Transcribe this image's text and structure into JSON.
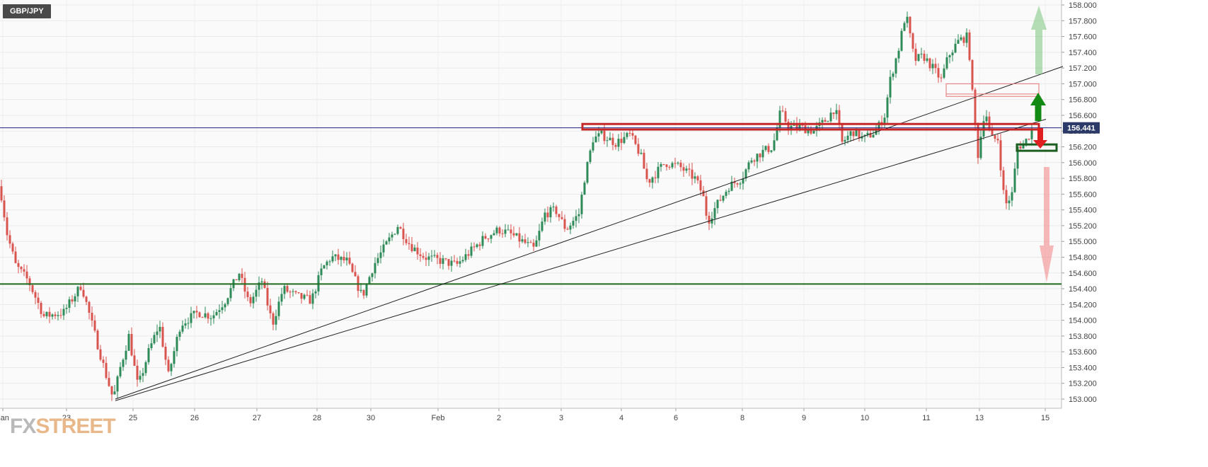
{
  "symbol": "GBP/JPY",
  "logo": {
    "prefix": "FX",
    "suffix": "STREET"
  },
  "chart_data": {
    "type": "candlestick",
    "title": "",
    "ylim": [
      152.95,
      158.05
    ],
    "price_ticks": [
      "158.000",
      "157.800",
      "157.600",
      "157.400",
      "157.200",
      "157.000",
      "156.800",
      "156.600",
      "156.400",
      "156.200",
      "156.000",
      "155.800",
      "155.600",
      "155.400",
      "155.200",
      "155.000",
      "154.800",
      "154.600",
      "154.400",
      "154.200",
      "154.000",
      "153.800",
      "153.600",
      "153.400",
      "153.200",
      "153.000"
    ],
    "date_labels": [
      "Jan",
      "23",
      "25",
      "26",
      "27",
      "28",
      "30",
      "Feb",
      "2",
      "3",
      "4",
      "6",
      "8",
      "9",
      "10",
      "11",
      "13",
      "15"
    ],
    "current_price": "156.441",
    "current_price_value": 156.441,
    "support_level": 154.46,
    "resistance_zone": [
      156.42,
      156.49
    ],
    "upper_box": [
      156.84,
      157.0
    ],
    "demand_box": [
      156.15,
      156.23
    ],
    "trendlines": [
      {
        "from": [
          153.0
        ],
        "to": [
          157.22
        ]
      },
      {
        "from": [
          152.98
        ],
        "to": [
          156.55
        ]
      }
    ],
    "arrows": [
      {
        "dir": "up",
        "style": "faded-green"
      },
      {
        "dir": "up",
        "style": "green"
      },
      {
        "dir": "down",
        "style": "red"
      },
      {
        "dir": "down",
        "style": "faded-red"
      }
    ],
    "anchors": [
      [
        0,
        155.7
      ],
      [
        10,
        155.1
      ],
      [
        22,
        154.7
      ],
      [
        40,
        154.5
      ],
      [
        62,
        154.05
      ],
      [
        90,
        154.1
      ],
      [
        115,
        154.45
      ],
      [
        130,
        153.95
      ],
      [
        150,
        153.3
      ],
      [
        160,
        153.0
      ],
      [
        170,
        153.4
      ],
      [
        182,
        153.8
      ],
      [
        195,
        153.15
      ],
      [
        210,
        153.6
      ],
      [
        225,
        153.95
      ],
      [
        238,
        153.3
      ],
      [
        255,
        153.95
      ],
      [
        280,
        154.1
      ],
      [
        300,
        154.05
      ],
      [
        318,
        154.25
      ],
      [
        338,
        154.6
      ],
      [
        352,
        154.2
      ],
      [
        370,
        154.5
      ],
      [
        385,
        153.95
      ],
      [
        400,
        154.4
      ],
      [
        420,
        154.3
      ],
      [
        440,
        154.25
      ],
      [
        455,
        154.65
      ],
      [
        468,
        154.8
      ],
      [
        490,
        154.75
      ],
      [
        512,
        154.3
      ],
      [
        528,
        154.7
      ],
      [
        545,
        154.95
      ],
      [
        562,
        155.2
      ],
      [
        580,
        154.95
      ],
      [
        600,
        154.8
      ],
      [
        625,
        154.75
      ],
      [
        645,
        154.7
      ],
      [
        668,
        154.9
      ],
      [
        685,
        155.05
      ],
      [
        705,
        155.15
      ],
      [
        720,
        155.1
      ],
      [
        738,
        155.0
      ],
      [
        755,
        154.9
      ],
      [
        770,
        155.35
      ],
      [
        785,
        155.4
      ],
      [
        800,
        155.15
      ],
      [
        818,
        155.35
      ],
      [
        826,
        155.8
      ],
      [
        838,
        156.3
      ],
      [
        850,
        156.35
      ],
      [
        870,
        156.25
      ],
      [
        890,
        156.35
      ],
      [
        905,
        156.1
      ],
      [
        915,
        155.75
      ],
      [
        925,
        155.85
      ],
      [
        940,
        156.0
      ],
      [
        960,
        155.95
      ],
      [
        982,
        155.8
      ],
      [
        993,
        155.6
      ],
      [
        1000,
        155.25
      ],
      [
        1012,
        155.45
      ],
      [
        1030,
        155.7
      ],
      [
        1048,
        155.8
      ],
      [
        1062,
        156.05
      ],
      [
        1080,
        156.15
      ],
      [
        1092,
        156.2
      ],
      [
        1103,
        156.65
      ],
      [
        1115,
        156.45
      ],
      [
        1130,
        156.45
      ],
      [
        1150,
        156.4
      ],
      [
        1168,
        156.55
      ],
      [
        1180,
        156.7
      ],
      [
        1190,
        156.25
      ],
      [
        1205,
        156.4
      ],
      [
        1220,
        156.3
      ],
      [
        1238,
        156.4
      ],
      [
        1250,
        156.6
      ],
      [
        1258,
        157.05
      ],
      [
        1270,
        157.45
      ],
      [
        1280,
        157.9
      ],
      [
        1292,
        157.3
      ],
      [
        1305,
        157.35
      ],
      [
        1318,
        157.2
      ],
      [
        1330,
        157.05
      ],
      [
        1340,
        157.35
      ],
      [
        1355,
        157.55
      ],
      [
        1368,
        157.6
      ],
      [
        1375,
        156.75
      ],
      [
        1382,
        156.1
      ],
      [
        1392,
        156.7
      ],
      [
        1400,
        156.3
      ],
      [
        1410,
        156.3
      ],
      [
        1420,
        155.45
      ],
      [
        1430,
        155.6
      ],
      [
        1438,
        156.2
      ],
      [
        1448,
        156.25
      ],
      [
        1460,
        156.44
      ]
    ]
  }
}
